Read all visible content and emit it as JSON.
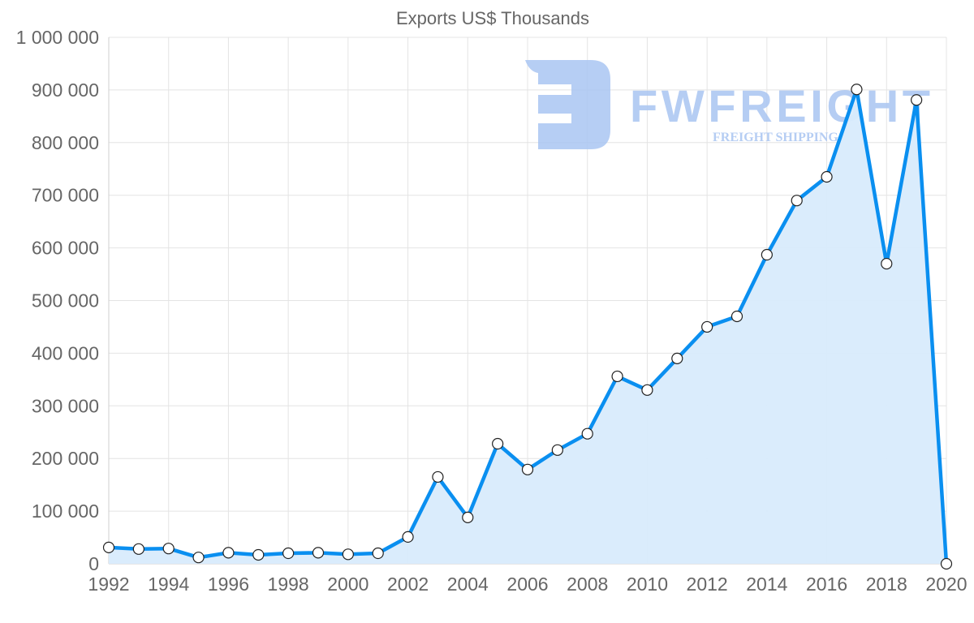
{
  "chart_data": {
    "type": "line",
    "title": "Exports US$ Thousands",
    "xlabel": "",
    "ylabel": "",
    "x": [
      1992,
      1993,
      1994,
      1995,
      1996,
      1997,
      1998,
      1999,
      2000,
      2001,
      2002,
      2003,
      2004,
      2005,
      2006,
      2007,
      2008,
      2009,
      2010,
      2011,
      2012,
      2013,
      2014,
      2015,
      2016,
      2017,
      2018,
      2019,
      2020
    ],
    "series": [
      {
        "name": "Exports US$ Thousands",
        "values": [
          31000,
          28000,
          29000,
          12000,
          21000,
          17000,
          20000,
          21000,
          18000,
          20000,
          51000,
          165000,
          88000,
          228000,
          179000,
          216000,
          247000,
          356000,
          330000,
          390000,
          450000,
          470000,
          587000,
          690000,
          735000,
          901000,
          570000,
          881000,
          0
        ],
        "color": "#0a8ff0",
        "fill": "#d8ebfc"
      }
    ],
    "xlim": [
      1992,
      2020
    ],
    "ylim": [
      0,
      1000000
    ],
    "x_ticks": [
      "1992",
      "1994",
      "1996",
      "1998",
      "2000",
      "2002",
      "2004",
      "2006",
      "2008",
      "2010",
      "2012",
      "2014",
      "2016",
      "2018",
      "2020"
    ],
    "y_ticks": [
      "0",
      "100 000",
      "200 000",
      "300 000",
      "400 000",
      "500 000",
      "600 000",
      "700 000",
      "800 000",
      "900 000",
      "1 000 000"
    ],
    "grid": true,
    "legend": "none"
  },
  "watermark": {
    "brand": "FWFREIGHT",
    "tagline": "FREIGHT SHIPPING",
    "color": "#a9c5f2"
  }
}
